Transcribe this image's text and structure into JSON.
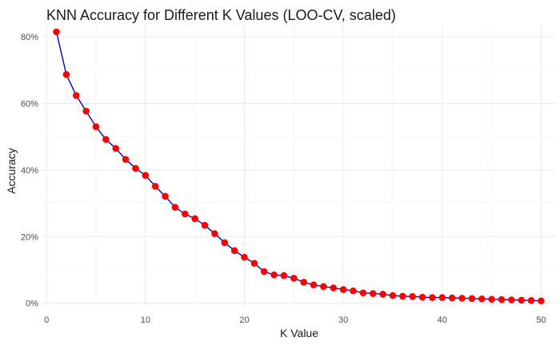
{
  "chart_data": {
    "type": "line",
    "title": "KNN Accuracy for Different K Values (LOO-CV, scaled)",
    "xlabel": "K Value",
    "ylabel": "Accuracy",
    "xlim": [
      -0.5,
      51.5
    ],
    "ylim": [
      -0.0128,
      0.834
    ],
    "x_ticks": [
      0,
      10,
      20,
      30,
      40,
      50
    ],
    "x_tick_labels": [
      "0",
      "10",
      "20",
      "30",
      "40",
      "50"
    ],
    "y_ticks": [
      0,
      0.2,
      0.4,
      0.6,
      0.8
    ],
    "y_tick_labels": [
      "0%",
      "20%",
      "40%",
      "60%",
      "80%"
    ],
    "grid": true,
    "line_color": "#0000cc",
    "point_color": "#ff0000",
    "series": [
      {
        "x": [
          1,
          2,
          3,
          4,
          5,
          6,
          7,
          8,
          9,
          10,
          11,
          12,
          13,
          14,
          15,
          16,
          17,
          18,
          19,
          20,
          21,
          22,
          23,
          24,
          25,
          26,
          27,
          28,
          29,
          30,
          31,
          32,
          33,
          34,
          35,
          36,
          37,
          38,
          39,
          40,
          41,
          42,
          43,
          44,
          45,
          46,
          47,
          48,
          49,
          50
        ],
        "values": [
          0.815,
          0.687,
          0.624,
          0.577,
          0.53,
          0.492,
          0.465,
          0.432,
          0.405,
          0.384,
          0.351,
          0.321,
          0.288,
          0.268,
          0.254,
          0.234,
          0.209,
          0.182,
          0.158,
          0.138,
          0.12,
          0.095,
          0.085,
          0.083,
          0.075,
          0.063,
          0.055,
          0.05,
          0.046,
          0.041,
          0.037,
          0.031,
          0.029,
          0.027,
          0.023,
          0.021,
          0.02,
          0.018,
          0.017,
          0.017,
          0.016,
          0.015,
          0.014,
          0.013,
          0.012,
          0.011,
          0.01,
          0.009,
          0.008,
          0.007
        ]
      }
    ]
  }
}
